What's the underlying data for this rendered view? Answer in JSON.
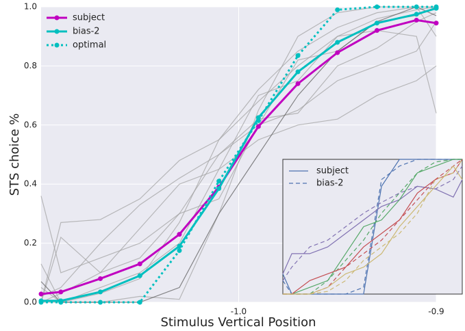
{
  "chart_data": [
    {
      "type": "line",
      "xlabel": "Stimulus Vertical Position",
      "ylabel": "STS choice %",
      "x": [
        -1.1,
        -1.09,
        -1.07,
        -1.05,
        -1.03,
        -1.01,
        -0.99,
        -0.97,
        -0.95,
        -0.93,
        -0.91,
        -0.9
      ],
      "xlim": [
        -1.1,
        -0.9
      ],
      "xticks": [
        {
          "value": -1,
          "label": "-1.0"
        },
        -0.9
      ],
      "ylim": [
        0,
        1
      ],
      "yticks": [
        {
          "value": 0,
          "label": "0.0"
        },
        0.2,
        0.4,
        0.6,
        0.8,
        {
          "value": 1,
          "label": "1.0"
        }
      ],
      "grid": true,
      "legend": "upper left",
      "series": [
        {
          "color": "#a0a0a0",
          "values": [
            0.36,
            0.1,
            0.15,
            0.2,
            0.3,
            0.5,
            0.6,
            0.65,
            0.75,
            0.8,
            0.85,
            0.95
          ]
        },
        {
          "color": "#a0a0a0",
          "values": [
            0.0,
            0.27,
            0.28,
            0.35,
            0.48,
            0.55,
            0.72,
            0.85,
            0.93,
            0.98,
            1.0,
            0.9
          ]
        },
        {
          "color": "#a0a0a0",
          "values": [
            0.05,
            0.0,
            0.05,
            0.1,
            0.2,
            0.45,
            0.7,
            0.75,
            0.9,
            0.92,
            0.9,
            0.64
          ]
        },
        {
          "color": "#a0a0a0",
          "values": [
            0.0,
            0.22,
            0.1,
            0.15,
            0.3,
            0.35,
            0.6,
            0.82,
            0.85,
            0.95,
            0.97,
            1.0
          ]
        },
        {
          "color": "#a0a0a0",
          "values": [
            0.13,
            0.0,
            0.0,
            0.02,
            0.01,
            0.3,
            0.65,
            0.9,
            0.98,
            1.0,
            1.0,
            1.0
          ]
        },
        {
          "color": "#a0a0a0",
          "values": [
            0.0,
            0.03,
            0.1,
            0.25,
            0.4,
            0.45,
            0.55,
            0.6,
            0.62,
            0.7,
            0.75,
            0.8
          ]
        },
        {
          "color": "#a0a0a0",
          "values": [
            0.02,
            0.05,
            0.2,
            0.33,
            0.42,
            0.5,
            0.62,
            0.64,
            0.8,
            0.86,
            0.95,
            0.98
          ]
        },
        {
          "color": "#a0a0a0",
          "values": [
            0.0,
            0.0,
            0.03,
            0.08,
            0.27,
            0.55,
            0.68,
            0.8,
            0.9,
            0.96,
            0.99,
            1.0
          ]
        },
        {
          "color": "#555555",
          "values": [
            0.07,
            0.0,
            0.0,
            0.0,
            0.05,
            0.3,
            0.5,
            0.7,
            0.85,
            0.95,
            1.0,
            0.97
          ]
        },
        {
          "name": "subject",
          "color": "#c000c0",
          "dash": "solid",
          "marker": true,
          "values": [
            0.028,
            0.035,
            0.08,
            0.13,
            0.23,
            0.39,
            0.595,
            0.74,
            0.845,
            0.92,
            0.955,
            0.945
          ]
        },
        {
          "name": "bias-2",
          "color": "#00bfbf",
          "dash": "solid",
          "marker": true,
          "values": [
            0.005,
            0.005,
            0.035,
            0.09,
            0.19,
            0.385,
            0.625,
            0.78,
            0.88,
            0.945,
            0.975,
            0.995
          ]
        },
        {
          "name": "optimal",
          "color": "#00bfbf",
          "dash": "dotted",
          "marker": true,
          "values": [
            0.0,
            0.0,
            0.0,
            0.0,
            0.175,
            0.41,
            0.615,
            0.835,
            0.99,
            1.0,
            1.0,
            1.0
          ]
        }
      ]
    },
    {
      "type": "line",
      "x": [
        -1.1,
        -1.09,
        -1.07,
        -1.05,
        -1.03,
        -1.01,
        -0.99,
        -0.97,
        -0.95,
        -0.93,
        -0.91,
        -0.9
      ],
      "xlim": [
        -1.1,
        -0.9
      ],
      "ylim": [
        0,
        1
      ],
      "legend_entries": [
        {
          "label": "subject",
          "color": "#4c72b0",
          "dash": "solid"
        },
        {
          "label": "bias-2",
          "color": "#4c72b0",
          "dash": "dashed"
        }
      ],
      "series": [
        {
          "color": "#4c72b0",
          "dash": "solid",
          "values": [
            0.15,
            0.0,
            0.0,
            0.0,
            0.0,
            0.0,
            0.8,
            1.0,
            1.0,
            1.0,
            1.0,
            1.0
          ]
        },
        {
          "color": "#4c72b0",
          "dash": "dashed",
          "values": [
            0.1,
            0.0,
            0.0,
            0.0,
            0.0,
            0.05,
            0.85,
            0.95,
            1.0,
            1.0,
            1.0,
            1.0
          ]
        },
        {
          "color": "#8172b2",
          "dash": "solid",
          "values": [
            0.15,
            0.3,
            0.3,
            0.35,
            0.45,
            0.55,
            0.65,
            0.7,
            0.8,
            0.78,
            0.72,
            0.85
          ]
        },
        {
          "color": "#8172b2",
          "dash": "dashed",
          "values": [
            0.1,
            0.2,
            0.35,
            0.4,
            0.5,
            0.6,
            0.68,
            0.75,
            0.8,
            0.78,
            0.85,
            0.95
          ]
        },
        {
          "color": "#55a868",
          "dash": "solid",
          "values": [
            0.0,
            0.0,
            0.05,
            0.1,
            0.3,
            0.5,
            0.55,
            0.7,
            0.9,
            0.95,
            1.0,
            1.0
          ]
        },
        {
          "color": "#55a868",
          "dash": "dashed",
          "values": [
            0.0,
            0.0,
            0.0,
            0.1,
            0.25,
            0.4,
            0.6,
            0.75,
            0.9,
            0.98,
            1.0,
            1.0
          ]
        },
        {
          "color": "#c44e52",
          "dash": "solid",
          "values": [
            0.0,
            0.0,
            0.1,
            0.15,
            0.2,
            0.35,
            0.45,
            0.55,
            0.75,
            0.85,
            0.9,
            1.0
          ]
        },
        {
          "color": "#c44e52",
          "dash": "dashed",
          "values": [
            0.0,
            0.0,
            0.0,
            0.05,
            0.2,
            0.3,
            0.4,
            0.55,
            0.7,
            0.85,
            0.95,
            1.0
          ]
        },
        {
          "color": "#ccb974",
          "dash": "solid",
          "values": [
            0.0,
            0.0,
            0.0,
            0.05,
            0.15,
            0.2,
            0.3,
            0.5,
            0.65,
            0.8,
            0.95,
            0.85
          ]
        },
        {
          "color": "#ccb974",
          "dash": "dashed",
          "values": [
            0.0,
            0.0,
            0.0,
            0.02,
            0.1,
            0.25,
            0.35,
            0.45,
            0.6,
            0.85,
            0.9,
            1.0
          ]
        }
      ]
    }
  ]
}
